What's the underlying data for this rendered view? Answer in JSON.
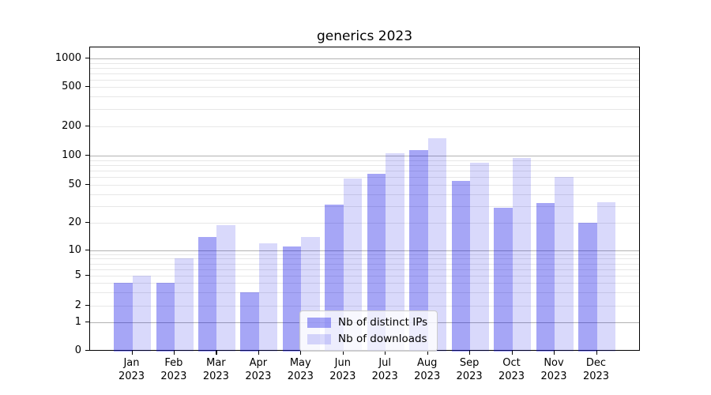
{
  "title": "generics 2023",
  "colors": {
    "ips_fill": "rgba(0,0,230,0.35)",
    "downloads_fill": "rgba(0,0,230,0.15)",
    "ips_hex_on_white": "#a6a6f7",
    "downloads_hex_on_white": "#d9d9fb",
    "major_grid": "#b2b2b2",
    "minor_grid": "#e7e7e7",
    "axis": "#000000"
  },
  "legend": {
    "items": [
      {
        "label": "Nb of distinct IPs"
      },
      {
        "label": "Nb of downloads"
      }
    ]
  },
  "chart_data": {
    "type": "bar",
    "title": "generics 2023",
    "xlabel": "",
    "ylabel": "",
    "yscale": "symlog",
    "ylim": [
      0,
      1000
    ],
    "grid": true,
    "legend_position": "lower center (inside axes)",
    "year_label": "2023",
    "categories": [
      "Jan",
      "Feb",
      "Mar",
      "Apr",
      "May",
      "Jun",
      "Jul",
      "Aug",
      "Sep",
      "Oct",
      "Nov",
      "Dec"
    ],
    "y_ticks": [
      0,
      1,
      2,
      5,
      10,
      20,
      50,
      100,
      200,
      500,
      1000
    ],
    "y_minor_ticks": [
      3,
      4,
      6,
      7,
      8,
      9,
      30,
      40,
      60,
      70,
      80,
      90,
      300,
      400,
      600,
      700,
      800,
      900
    ],
    "series": [
      {
        "name": "Nb of distinct IPs",
        "values": [
          4,
          4,
          14,
          3,
          11,
          31,
          65,
          115,
          55,
          29,
          32,
          20
        ]
      },
      {
        "name": "Nb of downloads",
        "values": [
          5,
          8,
          19,
          12,
          14,
          58,
          105,
          150,
          85,
          95,
          60,
          33
        ]
      }
    ]
  }
}
